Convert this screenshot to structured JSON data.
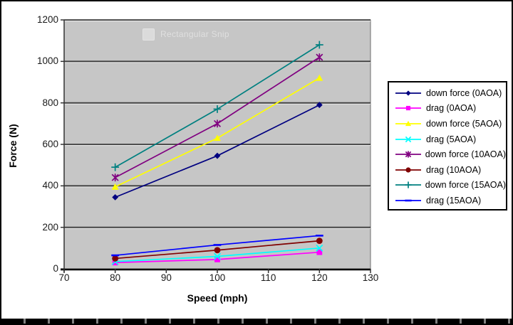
{
  "watermark": {
    "label": "Rectangular Snip"
  },
  "chart_data": {
    "type": "line",
    "title": "",
    "xlabel": "Speed (mph)",
    "ylabel": "Force (N)",
    "x": [
      80,
      100,
      120
    ],
    "xlim": [
      70,
      130
    ],
    "ylim": [
      0,
      1200
    ],
    "xticks": [
      70,
      80,
      90,
      100,
      110,
      120,
      130
    ],
    "yticks": [
      0,
      200,
      400,
      600,
      800,
      1000,
      1200
    ],
    "grid": "horizontal",
    "legend_position": "right",
    "plot_bg": "#c6c6c6",
    "series": [
      {
        "name": "down force (0AOA)",
        "color": "#000080",
        "marker": "diamond",
        "values": [
          345,
          545,
          790
        ]
      },
      {
        "name": "drag (0AOA)",
        "color": "#ff00ff",
        "marker": "square",
        "values": [
          30,
          45,
          80
        ]
      },
      {
        "name": "down force (5AOA)",
        "color": "#ffff00",
        "marker": "triangle",
        "values": [
          395,
          630,
          920
        ]
      },
      {
        "name": "drag (5AOA)",
        "color": "#00ffff",
        "marker": "x",
        "values": [
          35,
          60,
          100
        ]
      },
      {
        "name": "down force (10AOA)",
        "color": "#800080",
        "marker": "star",
        "values": [
          440,
          700,
          1020
        ]
      },
      {
        "name": "drag (10AOA)",
        "color": "#800000",
        "marker": "circle",
        "values": [
          50,
          90,
          135
        ]
      },
      {
        "name": "down force (15AOA)",
        "color": "#008080",
        "marker": "plus",
        "values": [
          490,
          770,
          1080
        ]
      },
      {
        "name": "drag (15AOA)",
        "color": "#0000ff",
        "marker": "dash",
        "values": [
          65,
          115,
          160
        ]
      }
    ]
  }
}
